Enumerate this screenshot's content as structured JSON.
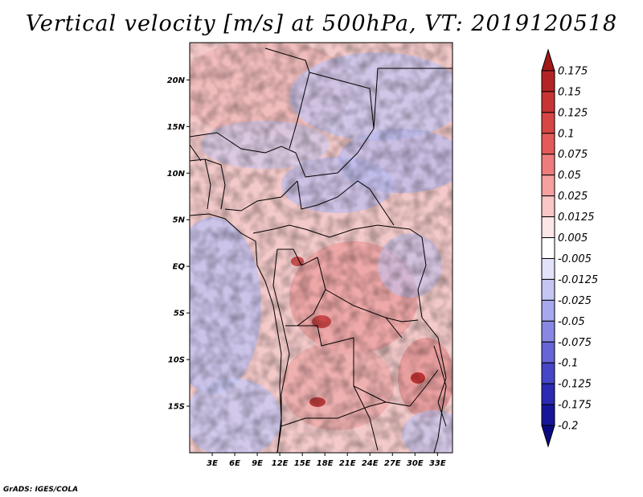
{
  "title": "Vertical velocity [m/s] at 500hPa, VT: 2019120518",
  "footer": "GrADS: IGES/COLA",
  "map": {
    "lon_range": [
      0,
      35
    ],
    "lat_range": [
      -20,
      24
    ],
    "x_ticks": [
      "3E",
      "6E",
      "9E",
      "12E",
      "15E",
      "18E",
      "21E",
      "24E",
      "27E",
      "30E",
      "33E"
    ],
    "y_ticks": [
      "20N",
      "15N",
      "10N",
      "5N",
      "EQ",
      "5S",
      "10S",
      "15S"
    ]
  },
  "colorbar": {
    "labels": [
      "0.175",
      "0.15",
      "0.125",
      "0.1",
      "0.075",
      "0.05",
      "0.025",
      "0.0125",
      "0.005",
      "-0.005",
      "-0.0125",
      "-0.025",
      "-0.05",
      "-0.075",
      "-0.1",
      "-0.125",
      "-0.175",
      "-0.2"
    ],
    "colors": [
      "#a01818",
      "#b52424",
      "#c83434",
      "#d84545",
      "#e45a5a",
      "#ee7c7c",
      "#f6a0a0",
      "#fac6c6",
      "#fde6e6",
      "#ffffff",
      "#e2e2fa",
      "#c6c6f4",
      "#a8a8ee",
      "#8888e4",
      "#6666d8",
      "#4646c8",
      "#2a2ab4",
      "#16169a",
      "#0a0a80"
    ]
  }
}
